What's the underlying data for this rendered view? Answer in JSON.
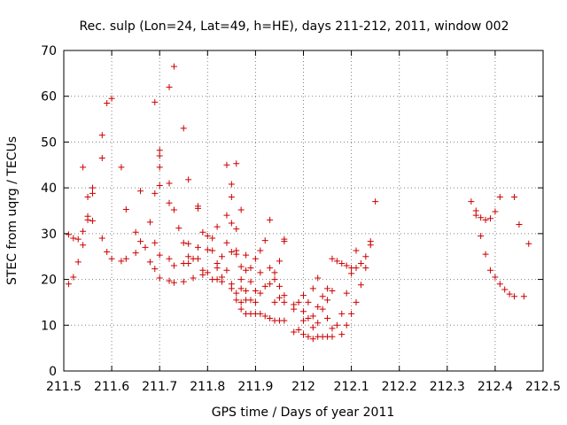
{
  "chart_data": {
    "type": "scatter",
    "title": "Rec. sulp (Lon=24, Lat=49, h=HE), days 211-212, 2011, window 002",
    "xlabel": "GPS time / Days of year 2011",
    "ylabel": "STEC from uqrg / TECUs",
    "xlim": [
      211.5,
      212.5
    ],
    "ylim": [
      0,
      70
    ],
    "x_ticks": [
      "211.5",
      "211.6",
      "211.7",
      "211.8",
      "211.9",
      "212",
      "212.1",
      "212.2",
      "212.3",
      "212.4",
      "212.5"
    ],
    "y_ticks": [
      "0",
      "10",
      "20",
      "30",
      "40",
      "50",
      "60",
      "70"
    ],
    "grid": true,
    "marker": "plus",
    "color": "#cc0000",
    "points": [
      [
        211.51,
        19.0
      ],
      [
        211.51,
        29.8
      ],
      [
        211.52,
        20.5
      ],
      [
        211.52,
        29.0
      ],
      [
        211.53,
        23.8
      ],
      [
        211.53,
        28.8
      ],
      [
        211.54,
        27.5
      ],
      [
        211.54,
        30.5
      ],
      [
        211.54,
        44.5
      ],
      [
        211.55,
        33.0
      ],
      [
        211.55,
        33.8
      ],
      [
        211.55,
        38.0
      ],
      [
        211.56,
        32.8
      ],
      [
        211.56,
        38.8
      ],
      [
        211.56,
        40.0
      ],
      [
        211.58,
        29.0
      ],
      [
        211.58,
        46.5
      ],
      [
        211.58,
        51.5
      ],
      [
        211.59,
        26.0
      ],
      [
        211.59,
        58.5
      ],
      [
        211.6,
        59.5
      ],
      [
        211.6,
        24.5
      ],
      [
        211.62,
        24.0
      ],
      [
        211.62,
        44.5
      ],
      [
        211.63,
        24.5
      ],
      [
        211.63,
        35.3
      ],
      [
        211.65,
        30.3
      ],
      [
        211.65,
        25.8
      ],
      [
        211.66,
        39.3
      ],
      [
        211.66,
        28.3
      ],
      [
        211.67,
        27.0
      ],
      [
        211.68,
        23.8
      ],
      [
        211.68,
        32.5
      ],
      [
        211.69,
        58.7
      ],
      [
        211.69,
        38.8
      ],
      [
        211.69,
        28.0
      ],
      [
        211.69,
        22.3
      ],
      [
        211.7,
        48.2
      ],
      [
        211.7,
        47.0
      ],
      [
        211.7,
        44.5
      ],
      [
        211.7,
        40.5
      ],
      [
        211.7,
        25.3
      ],
      [
        211.7,
        20.3
      ],
      [
        211.72,
        62.0
      ],
      [
        211.72,
        41.0
      ],
      [
        211.72,
        36.7
      ],
      [
        211.72,
        24.5
      ],
      [
        211.72,
        19.7
      ],
      [
        211.73,
        66.5
      ],
      [
        211.73,
        35.2
      ],
      [
        211.73,
        23.0
      ],
      [
        211.73,
        19.3
      ],
      [
        211.74,
        31.2
      ],
      [
        211.75,
        53.0
      ],
      [
        211.75,
        28.0
      ],
      [
        211.75,
        23.5
      ],
      [
        211.75,
        19.5
      ],
      [
        211.76,
        41.8
      ],
      [
        211.76,
        27.8
      ],
      [
        211.76,
        25.0
      ],
      [
        211.76,
        23.5
      ],
      [
        211.77,
        20.3
      ],
      [
        211.77,
        24.5
      ],
      [
        211.78,
        36.0
      ],
      [
        211.78,
        35.5
      ],
      [
        211.78,
        27.0
      ],
      [
        211.78,
        24.5
      ],
      [
        211.79,
        22.0
      ],
      [
        211.79,
        21.0
      ],
      [
        211.79,
        30.3
      ],
      [
        211.8,
        29.5
      ],
      [
        211.8,
        26.5
      ],
      [
        211.8,
        21.5
      ],
      [
        211.81,
        20.0
      ],
      [
        211.81,
        26.3
      ],
      [
        211.81,
        29.0
      ],
      [
        211.82,
        20.0
      ],
      [
        211.82,
        22.5
      ],
      [
        211.82,
        23.5
      ],
      [
        211.82,
        31.5
      ],
      [
        211.83,
        19.5
      ],
      [
        211.83,
        20.5
      ],
      [
        211.83,
        25.0
      ],
      [
        211.84,
        45.0
      ],
      [
        211.84,
        34.0
      ],
      [
        211.84,
        28.0
      ],
      [
        211.84,
        22.0
      ],
      [
        211.85,
        40.8
      ],
      [
        211.85,
        38.0
      ],
      [
        211.85,
        32.3
      ],
      [
        211.85,
        26.0
      ],
      [
        211.85,
        19.0
      ],
      [
        211.85,
        18.0
      ],
      [
        211.86,
        45.3
      ],
      [
        211.86,
        31.0
      ],
      [
        211.86,
        26.3
      ],
      [
        211.86,
        25.5
      ],
      [
        211.86,
        17.0
      ],
      [
        211.86,
        15.5
      ],
      [
        211.87,
        35.2
      ],
      [
        211.87,
        22.8
      ],
      [
        211.87,
        20.0
      ],
      [
        211.87,
        18.0
      ],
      [
        211.87,
        15.0
      ],
      [
        211.87,
        13.5
      ],
      [
        211.88,
        25.3
      ],
      [
        211.88,
        22.0
      ],
      [
        211.88,
        17.5
      ],
      [
        211.88,
        15.5
      ],
      [
        211.88,
        12.5
      ],
      [
        211.89,
        22.5
      ],
      [
        211.89,
        19.5
      ],
      [
        211.89,
        15.5
      ],
      [
        211.89,
        12.5
      ],
      [
        211.9,
        24.5
      ],
      [
        211.9,
        17.5
      ],
      [
        211.9,
        15.0
      ],
      [
        211.9,
        12.5
      ],
      [
        211.91,
        26.3
      ],
      [
        211.91,
        21.5
      ],
      [
        211.91,
        17.0
      ],
      [
        211.91,
        12.5
      ],
      [
        211.92,
        28.5
      ],
      [
        211.92,
        18.5
      ],
      [
        211.92,
        12.0
      ],
      [
        211.93,
        33.0
      ],
      [
        211.93,
        22.5
      ],
      [
        211.93,
        19.0
      ],
      [
        211.93,
        11.5
      ],
      [
        211.94,
        21.5
      ],
      [
        211.94,
        20.0
      ],
      [
        211.94,
        15.0
      ],
      [
        211.94,
        11.0
      ],
      [
        211.95,
        24.0
      ],
      [
        211.95,
        18.5
      ],
      [
        211.95,
        16.0
      ],
      [
        211.95,
        11.0
      ],
      [
        211.96,
        28.8
      ],
      [
        211.96,
        28.3
      ],
      [
        211.96,
        16.5
      ],
      [
        211.96,
        15.0
      ],
      [
        211.96,
        11.0
      ],
      [
        211.98,
        14.5
      ],
      [
        211.98,
        8.5
      ],
      [
        211.98,
        13.5
      ],
      [
        211.99,
        15.0
      ],
      [
        211.99,
        9.0
      ],
      [
        212.0,
        16.5
      ],
      [
        212.0,
        13.0
      ],
      [
        212.0,
        11.0
      ],
      [
        212.0,
        8.0
      ],
      [
        212.01,
        15.0
      ],
      [
        212.01,
        11.5
      ],
      [
        212.01,
        7.5
      ],
      [
        212.02,
        18.0
      ],
      [
        212.02,
        12.0
      ],
      [
        212.02,
        9.5
      ],
      [
        212.02,
        7.0
      ],
      [
        212.03,
        20.3
      ],
      [
        212.03,
        14.0
      ],
      [
        212.03,
        10.5
      ],
      [
        212.03,
        7.5
      ],
      [
        212.04,
        16.3
      ],
      [
        212.04,
        13.5
      ],
      [
        212.04,
        7.5
      ],
      [
        212.05,
        18.0
      ],
      [
        212.05,
        15.5
      ],
      [
        212.05,
        11.5
      ],
      [
        212.05,
        7.5
      ],
      [
        212.06,
        7.5
      ],
      [
        212.06,
        9.3
      ],
      [
        212.06,
        17.5
      ],
      [
        212.06,
        24.5
      ],
      [
        212.07,
        24.0
      ],
      [
        212.07,
        10.0
      ],
      [
        212.08,
        12.5
      ],
      [
        212.08,
        23.5
      ],
      [
        212.08,
        8.0
      ],
      [
        212.09,
        17.0
      ],
      [
        212.09,
        10.0
      ],
      [
        212.09,
        23.0
      ],
      [
        212.1,
        22.5
      ],
      [
        212.1,
        21.3
      ],
      [
        212.1,
        12.5
      ],
      [
        212.11,
        26.3
      ],
      [
        212.11,
        15.0
      ],
      [
        212.11,
        22.5
      ],
      [
        212.12,
        23.5
      ],
      [
        212.12,
        18.8
      ],
      [
        212.13,
        25.0
      ],
      [
        212.13,
        22.5
      ],
      [
        212.14,
        27.5
      ],
      [
        212.14,
        28.3
      ],
      [
        212.15,
        37.0
      ],
      [
        212.35,
        37.0
      ],
      [
        212.36,
        35.0
      ],
      [
        212.36,
        34.0
      ],
      [
        212.37,
        29.5
      ],
      [
        212.37,
        33.5
      ],
      [
        212.38,
        33.0
      ],
      [
        212.38,
        25.5
      ],
      [
        212.39,
        33.3
      ],
      [
        212.39,
        22.0
      ],
      [
        212.4,
        34.8
      ],
      [
        212.4,
        20.5
      ],
      [
        212.41,
        38.0
      ],
      [
        212.41,
        19.0
      ],
      [
        212.42,
        17.8
      ],
      [
        212.43,
        16.8
      ],
      [
        212.44,
        38.0
      ],
      [
        212.44,
        16.3
      ],
      [
        212.45,
        32.0
      ],
      [
        212.46,
        16.3
      ],
      [
        212.47,
        27.8
      ]
    ]
  }
}
